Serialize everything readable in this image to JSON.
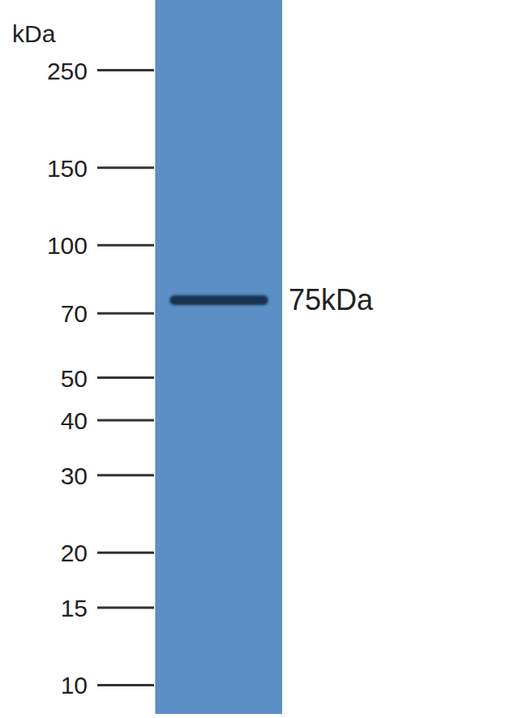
{
  "chart_data": {
    "type": "blot",
    "y_label": "kDa",
    "log": "y",
    "ylim": [
      8.6,
      361
    ],
    "yticks": [
      10,
      15,
      20,
      30,
      40,
      50,
      70,
      100,
      150,
      250
    ],
    "categories": [
      null
    ],
    "values": [
      75
    ],
    "value_labels": [
      "75kDa"
    ],
    "data_labels": true,
    "color": "#16304f"
  }
}
